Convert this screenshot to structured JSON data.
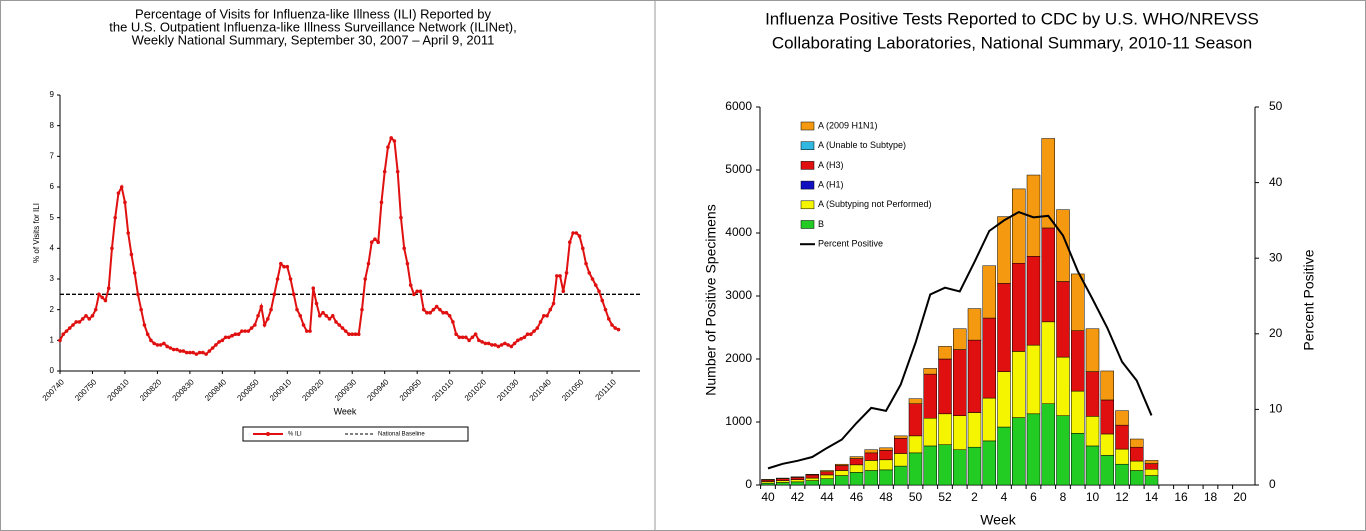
{
  "chart_data": [
    {
      "type": "line",
      "title": [
        "Percentage of Visits for Influenza-like Illness (ILI) Reported by",
        "the U.S. Outpatient Influenza-like Illness Surveillance Network (ILINet),",
        "Weekly National Summary, September 30, 2007 – April 9, 2011"
      ],
      "x_label": "Week",
      "y_label": "% of Visits for ILI",
      "categories": [
        "200740",
        null,
        null,
        null,
        null,
        null,
        null,
        null,
        null,
        null,
        "200750",
        null,
        null,
        null,
        null,
        null,
        null,
        null,
        null,
        null,
        "200810",
        null,
        null,
        null,
        null,
        null,
        null,
        null,
        null,
        null,
        "200820",
        null,
        null,
        null,
        null,
        null,
        null,
        null,
        null,
        null,
        "200830",
        null,
        null,
        null,
        null,
        null,
        null,
        null,
        null,
        null,
        "200840",
        null,
        null,
        null,
        null,
        null,
        null,
        null,
        null,
        null,
        "200850",
        null,
        null,
        null,
        null,
        null,
        null,
        null,
        null,
        null,
        "200910",
        null,
        null,
        null,
        null,
        null,
        null,
        null,
        null,
        null,
        "200920",
        null,
        null,
        null,
        null,
        null,
        null,
        null,
        null,
        null,
        "200930",
        null,
        null,
        null,
        null,
        null,
        null,
        null,
        null,
        null,
        "200940",
        null,
        null,
        null,
        null,
        null,
        null,
        null,
        null,
        null,
        "200950",
        null,
        null,
        null,
        null,
        null,
        null,
        null,
        null,
        null,
        "201010",
        null,
        null,
        null,
        null,
        null,
        null,
        null,
        null,
        null,
        "201020",
        null,
        null,
        null,
        null,
        null,
        null,
        null,
        null,
        null,
        "201030",
        null,
        null,
        null,
        null,
        null,
        null,
        null,
        null,
        null,
        "201040",
        null,
        null,
        null,
        null,
        null,
        null,
        null,
        null,
        null,
        "201050",
        null,
        null,
        null,
        null,
        null,
        null,
        null,
        null,
        null,
        "201110",
        null,
        null
      ],
      "series": [
        {
          "name": "% ILI",
          "color": "#e01010",
          "values": [
            1.0,
            1.2,
            1.3,
            1.4,
            1.5,
            1.6,
            1.6,
            1.7,
            1.8,
            1.7,
            1.8,
            2.0,
            2.5,
            2.4,
            2.3,
            2.7,
            4.0,
            5.0,
            5.8,
            6.0,
            5.5,
            4.5,
            3.8,
            3.2,
            2.5,
            2.0,
            1.5,
            1.2,
            1.0,
            0.9,
            0.85,
            0.85,
            0.9,
            0.8,
            0.75,
            0.7,
            0.7,
            0.65,
            0.65,
            0.6,
            0.6,
            0.6,
            0.55,
            0.6,
            0.6,
            0.55,
            0.65,
            0.75,
            0.85,
            0.95,
            1.0,
            1.1,
            1.1,
            1.15,
            1.2,
            1.2,
            1.3,
            1.3,
            1.3,
            1.4,
            1.5,
            1.8,
            2.1,
            1.5,
            1.7,
            2.0,
            2.5,
            3.0,
            3.5,
            3.4,
            3.4,
            3.0,
            2.5,
            2.0,
            1.8,
            1.5,
            1.3,
            1.3,
            2.7,
            2.2,
            1.8,
            1.9,
            1.8,
            1.7,
            1.8,
            1.6,
            1.5,
            1.4,
            1.3,
            1.2,
            1.2,
            1.2,
            1.2,
            2.0,
            3.0,
            3.5,
            4.2,
            4.3,
            4.2,
            5.5,
            6.5,
            7.3,
            7.6,
            7.5,
            6.5,
            5.0,
            4.0,
            3.5,
            2.8,
            2.5,
            2.6,
            2.6,
            2.0,
            1.9,
            1.9,
            2.0,
            2.1,
            2.0,
            1.9,
            1.9,
            1.8,
            1.6,
            1.2,
            1.1,
            1.1,
            1.1,
            1.0,
            1.1,
            1.2,
            1.0,
            0.95,
            0.9,
            0.9,
            0.85,
            0.85,
            0.8,
            0.85,
            0.9,
            0.85,
            0.8,
            0.9,
            1.0,
            1.05,
            1.1,
            1.2,
            1.2,
            1.3,
            1.4,
            1.6,
            1.8,
            1.8,
            2.0,
            2.2,
            3.1,
            3.1,
            2.6,
            3.2,
            4.2,
            4.5,
            4.5,
            4.4,
            4.0,
            3.5,
            3.2,
            3.0,
            2.8,
            2.6,
            2.3,
            2.0,
            1.7,
            1.5,
            1.4,
            1.35
          ]
        }
      ],
      "reference_line": {
        "name": "National Baseline",
        "value": 2.5,
        "color": "#000000"
      },
      "ylim": [
        0,
        9
      ],
      "yticks": [
        0,
        1,
        2,
        3,
        4,
        5,
        6,
        7,
        8,
        9
      ]
    },
    {
      "type": "bar",
      "stacked": true,
      "title": [
        "Influenza Positive Tests Reported to CDC by U.S. WHO/NREVSS",
        "Collaborating Laboratories, National Summary, 2010-11 Season"
      ],
      "x_label": "Week",
      "y_label": "Number of Positive Specimens",
      "y2_label": "Percent Positive",
      "categories": [
        "40",
        null,
        "42",
        null,
        "44",
        null,
        "46",
        null,
        "48",
        null,
        "50",
        null,
        "52",
        null,
        "2",
        null,
        "4",
        null,
        "6",
        null,
        "8",
        null,
        "10",
        null,
        "12",
        null,
        "14",
        null,
        "16",
        null,
        "18",
        null,
        "20"
      ],
      "series": [
        {
          "name": "B",
          "color": "#22cc22",
          "values": [
            30,
            40,
            50,
            70,
            100,
            150,
            200,
            230,
            240,
            300,
            510,
            620,
            640,
            560,
            600,
            700,
            920,
            1070,
            1130,
            1290,
            1100,
            820,
            620,
            470,
            330,
            230,
            150,
            null,
            null,
            null,
            null,
            null,
            null
          ]
        },
        {
          "name": "A (Subtyping not Performed)",
          "color": "#f5f500",
          "values": [
            25,
            30,
            35,
            40,
            60,
            80,
            120,
            160,
            160,
            200,
            270,
            440,
            490,
            540,
            550,
            680,
            880,
            1050,
            1090,
            1300,
            930,
            670,
            470,
            340,
            240,
            150,
            100,
            null,
            null,
            null,
            null,
            null,
            null
          ]
        },
        {
          "name": "A (H1)",
          "color": "#1010c0",
          "values": [
            0,
            0,
            0,
            0,
            0,
            0,
            0,
            0,
            0,
            0,
            0,
            0,
            0,
            0,
            0,
            0,
            0,
            0,
            0,
            0,
            0,
            0,
            0,
            0,
            0,
            0,
            0,
            null,
            null,
            null,
            null,
            null,
            null
          ]
        },
        {
          "name": "A (H3)",
          "color": "#e01010",
          "values": [
            25,
            30,
            35,
            50,
            50,
            80,
            100,
            120,
            150,
            240,
            510,
            700,
            870,
            1050,
            1150,
            1270,
            1400,
            1400,
            1410,
            1490,
            1200,
            960,
            710,
            540,
            380,
            220,
            90,
            null,
            null,
            null,
            null,
            null,
            null
          ]
        },
        {
          "name": "A (Unable to Subtype)",
          "color": "#30b8e0",
          "values": [
            0,
            0,
            0,
            0,
            0,
            0,
            0,
            0,
            0,
            0,
            0,
            0,
            0,
            0,
            0,
            0,
            0,
            0,
            0,
            0,
            0,
            0,
            0,
            0,
            0,
            0,
            0,
            null,
            null,
            null,
            null,
            null,
            null
          ]
        },
        {
          "name": "A (2009 H1N1)",
          "color": "#f59a10",
          "values": [
            10,
            10,
            10,
            10,
            20,
            20,
            30,
            50,
            40,
            40,
            80,
            90,
            200,
            330,
            500,
            830,
            1060,
            1180,
            1290,
            1420,
            1140,
            900,
            680,
            460,
            230,
            130,
            50,
            null,
            null,
            null,
            null,
            null,
            null
          ]
        },
        {
          "name": "Percent Positive",
          "color": "#000000",
          "type": "line",
          "axis": "y2",
          "values": [
            2.2,
            2.8,
            3.2,
            3.7,
            4.9,
            6.0,
            8.2,
            10.2,
            9.8,
            13.3,
            18.8,
            25.2,
            26.1,
            25.6,
            29.5,
            33.6,
            35.0,
            36.1,
            35.4,
            35.6,
            33.0,
            28.3,
            24.6,
            20.8,
            16.3,
            13.8,
            9.2,
            null,
            null,
            null,
            null,
            null,
            null
          ]
        }
      ],
      "ylim": [
        0,
        6000
      ],
      "yticks": [
        0,
        1000,
        2000,
        3000,
        4000,
        5000,
        6000
      ],
      "y2lim": [
        0,
        50
      ],
      "y2ticks": [
        0,
        10,
        20,
        30,
        40,
        50
      ]
    }
  ]
}
